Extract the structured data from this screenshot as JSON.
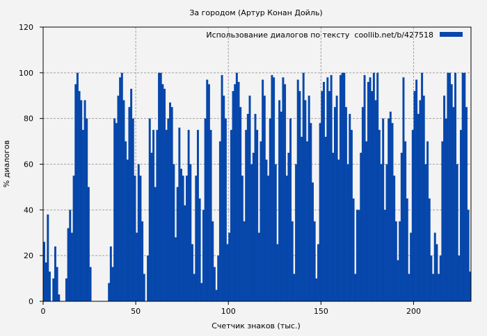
{
  "colors": {
    "bar": "#0747ab",
    "background": "#f3f3f3",
    "grid": "#a0a0a0"
  },
  "chart_data": {
    "type": "bar",
    "title": "За городом (Артур Конан Дойль)",
    "xlabel": "Счетчик знаков (тыс.)",
    "ylabel": "% диалогов",
    "xlim": [
      0,
      231
    ],
    "ylim": [
      0,
      120
    ],
    "xticks": [
      0,
      50,
      100,
      150,
      200
    ],
    "yticks": [
      0,
      20,
      40,
      60,
      80,
      100,
      120
    ],
    "grid": true,
    "legend": {
      "placement": "top-right",
      "entries": [
        "Использование диалогов по тексту  coollib.net/b/427518"
      ]
    },
    "series": [
      {
        "name": "Использование диалогов по тексту  coollib.net/b/427518",
        "values": [
          26,
          17,
          38,
          13,
          0,
          10,
          24,
          15,
          3,
          0,
          0,
          0,
          10,
          32,
          40,
          30,
          55,
          95,
          100,
          92,
          88,
          75,
          88,
          80,
          50,
          15,
          0,
          0,
          0,
          0,
          0,
          0,
          0,
          0,
          0,
          8,
          24,
          15,
          80,
          78,
          90,
          98,
          100,
          88,
          70,
          62,
          85,
          93,
          80,
          55,
          30,
          60,
          55,
          35,
          12,
          0,
          20,
          80,
          65,
          75,
          50,
          75,
          100,
          100,
          95,
          93,
          75,
          80,
          87,
          85,
          60,
          28,
          50,
          76,
          58,
          55,
          42,
          55,
          75,
          60,
          25,
          12,
          55,
          75,
          45,
          8,
          40,
          80,
          97,
          95,
          75,
          35,
          15,
          5,
          20,
          70,
          99,
          90,
          80,
          25,
          30,
          75,
          92,
          95,
          100,
          96,
          85,
          55,
          35,
          75,
          82,
          90,
          60,
          65,
          82,
          75,
          30,
          70,
          97,
          90,
          62,
          55,
          80,
          99,
          98,
          60,
          25,
          88,
          83,
          98,
          95,
          55,
          65,
          80,
          35,
          12,
          60,
          97,
          92,
          72,
          100,
          88,
          70,
          90,
          78,
          52,
          35,
          10,
          25,
          78,
          92,
          96,
          72,
          98,
          92,
          99,
          65,
          85,
          90,
          62,
          99,
          100,
          100,
          85,
          60,
          82,
          75,
          45,
          12,
          40,
          40,
          65,
          85,
          99,
          70,
          96,
          98,
          92,
          100,
          88,
          100,
          75,
          60,
          80,
          40,
          60,
          80,
          83,
          78,
          55,
          35,
          18,
          35,
          65,
          98,
          70,
          45,
          12,
          30,
          75,
          92,
          97,
          82,
          88,
          100,
          90,
          60,
          70,
          45,
          20,
          12,
          30,
          25,
          12,
          20,
          70,
          90,
          80,
          100,
          100,
          95,
          85,
          100,
          60,
          20,
          75,
          100,
          100,
          85,
          40,
          13
        ]
      }
    ]
  }
}
